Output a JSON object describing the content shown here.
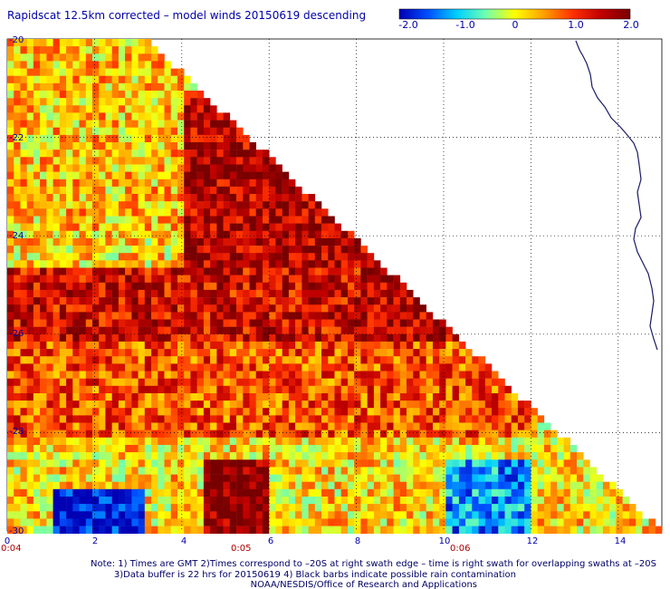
{
  "title": "Rapidscat 12.5km corrected – model winds 20150619 descending",
  "colorbar": {
    "ticks": [
      "-2.0",
      "-1.0",
      "0",
      "1.0",
      "2.0"
    ],
    "colors": [
      "#0000b4",
      "#0050ff",
      "#00d0ff",
      "#70ffb0",
      "#ffff00",
      "#ffa000",
      "#ff3000",
      "#c00000",
      "#780000"
    ]
  },
  "chart_data": {
    "type": "heatmap",
    "title": "Rapidscat 12.5km corrected – model winds 20150619 descending",
    "value_range": [
      -2.0,
      2.0
    ],
    "x_range": [
      0,
      15
    ],
    "y_range": [
      -30,
      -20
    ],
    "x_tick_labels": [
      "0",
      "2",
      "4",
      "6",
      "8",
      "10",
      "12",
      "14"
    ],
    "y_tick_labels": [
      "-20",
      "-22",
      "-24",
      "-26",
      "-28",
      "-30"
    ],
    "grid": true,
    "time_labels": [
      {
        "x": 0,
        "text": "0:04"
      },
      {
        "x": 5.5,
        "text": "0:05"
      },
      {
        "x": 10.4,
        "text": "0:06"
      }
    ],
    "regions": [
      {
        "name": "upper-left mixed",
        "lon": [
          0,
          5
        ],
        "lat": [
          -24,
          -20
        ],
        "value": 0.3
      },
      {
        "name": "swath edge band",
        "lon": [
          4,
          12
        ],
        "lat": [
          -27,
          -21
        ],
        "value": 1.6
      },
      {
        "name": "mid band",
        "lon": [
          0,
          8
        ],
        "lat": [
          -26,
          -24.5
        ],
        "value": 1.4
      },
      {
        "name": "lower band",
        "lon": [
          0,
          12
        ],
        "lat": [
          -28,
          -26
        ],
        "value": 0.9
      },
      {
        "name": "south-west low",
        "lon": [
          1,
          3
        ],
        "lat": [
          -30,
          -29
        ],
        "value": -1.9
      },
      {
        "name": "south-central high",
        "lon": [
          4.5,
          6
        ],
        "lat": [
          -30,
          -28.5
        ],
        "value": 1.9
      },
      {
        "name": "south-east low",
        "lon": [
          10,
          12
        ],
        "lat": [
          -30,
          -28.5
        ],
        "value": -1.2
      }
    ]
  },
  "notes": {
    "line1": "Note: 1) Times are GMT 2)Times correspond to –20S at right swath edge – time is right swath for overlapping swaths at –20S",
    "line2": "3)Data buffer is 22 hrs for 20150619 4) Black barbs indicate possible rain contamination",
    "line3": "NOAA/NESDIS/Office of Research and Applications"
  }
}
